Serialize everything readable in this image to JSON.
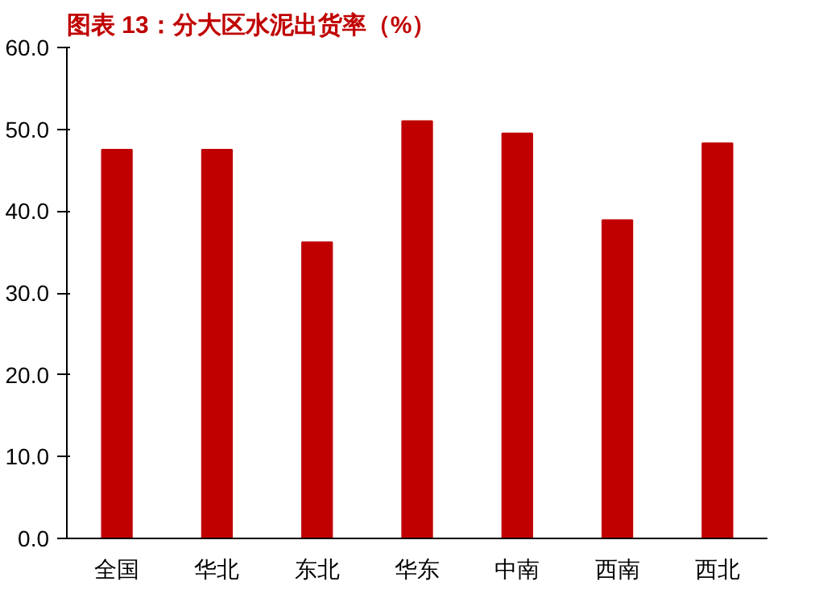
{
  "chart_data": {
    "type": "bar",
    "title": "图表 13：分大区水泥出货率（%）",
    "categories": [
      "全国",
      "华北",
      "东北",
      "华东",
      "中南",
      "西南",
      "西北"
    ],
    "values": [
      47.5,
      47.5,
      36.2,
      51.0,
      49.5,
      38.9,
      48.3
    ],
    "color": "#c00000",
    "ylim": [
      0,
      60
    ],
    "yticks": [
      {
        "value": 0,
        "label": "0.0"
      },
      {
        "value": 10,
        "label": "10.0"
      },
      {
        "value": 20,
        "label": "20.0"
      },
      {
        "value": 30,
        "label": "30.0"
      },
      {
        "value": 40,
        "label": "40.0"
      },
      {
        "value": 50,
        "label": "50.0"
      },
      {
        "value": 60,
        "label": "60.0"
      }
    ],
    "grid": false
  }
}
